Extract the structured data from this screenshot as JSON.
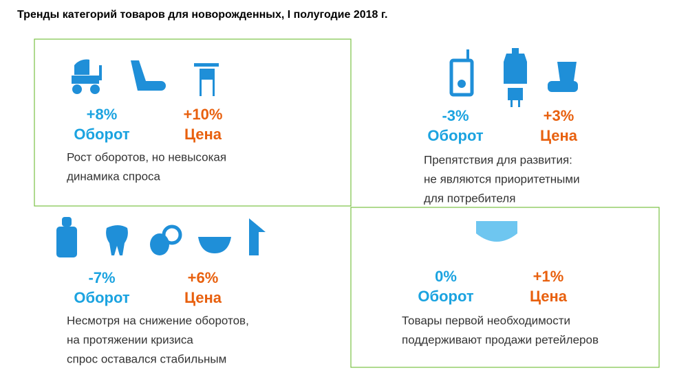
{
  "title": "Тренды категорий товаров для новорожденных,  I полугодие 2018 г.",
  "quadrants": [
    {
      "turnover": "+8%",
      "turnover_label": "Оборот",
      "price": "+10%",
      "price_label": "Цена",
      "description": [
        "Рост оборотов, но невысокая",
        "динамика спроса"
      ]
    },
    {
      "turnover": "-3%",
      "turnover_label": "Оборот",
      "price": "+3%",
      "price_label": "Цена",
      "description": [
        "Препятствия для развития:",
        "не являются приоритетными",
        "для потребителя"
      ]
    },
    {
      "turnover": "-7%",
      "turnover_label": "Оборот",
      "price": "+6%",
      "price_label": "Цена",
      "description": [
        "Несмотря на снижение оборотов,",
        "на протяжении кризиса",
        "спрос оставался стабильным"
      ]
    },
    {
      "turnover": "0%",
      "turnover_label": "Оборот",
      "price": "+1%",
      "price_label": "Цена",
      "description": [
        "Товары первой необходимости",
        "поддерживают продажи ретейлеров"
      ]
    }
  ]
}
